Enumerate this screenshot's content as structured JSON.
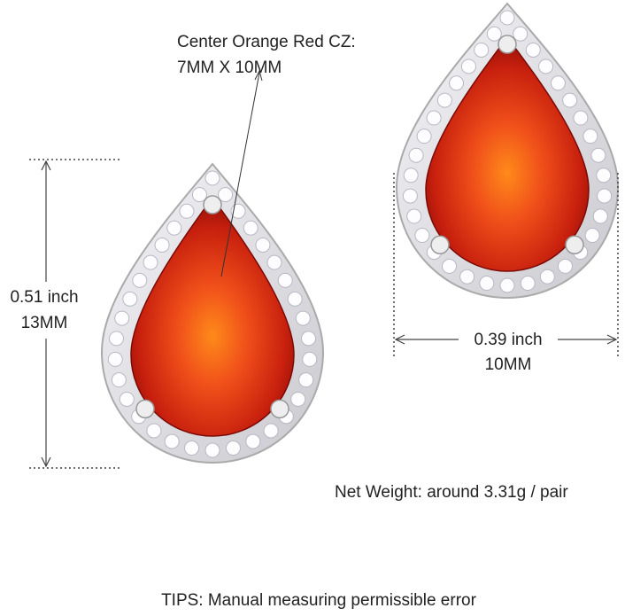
{
  "center_stone": {
    "label": "Center Orange Red CZ:",
    "size": "7MM X 10MM"
  },
  "height": {
    "inch": "0.51 inch",
    "mm": "13MM"
  },
  "width": {
    "inch": "0.39 inch",
    "mm": "10MM"
  },
  "net_weight": "Net Weight: around 3.31g / pair",
  "tips": "TIPS: Manual measuring permissible error"
}
